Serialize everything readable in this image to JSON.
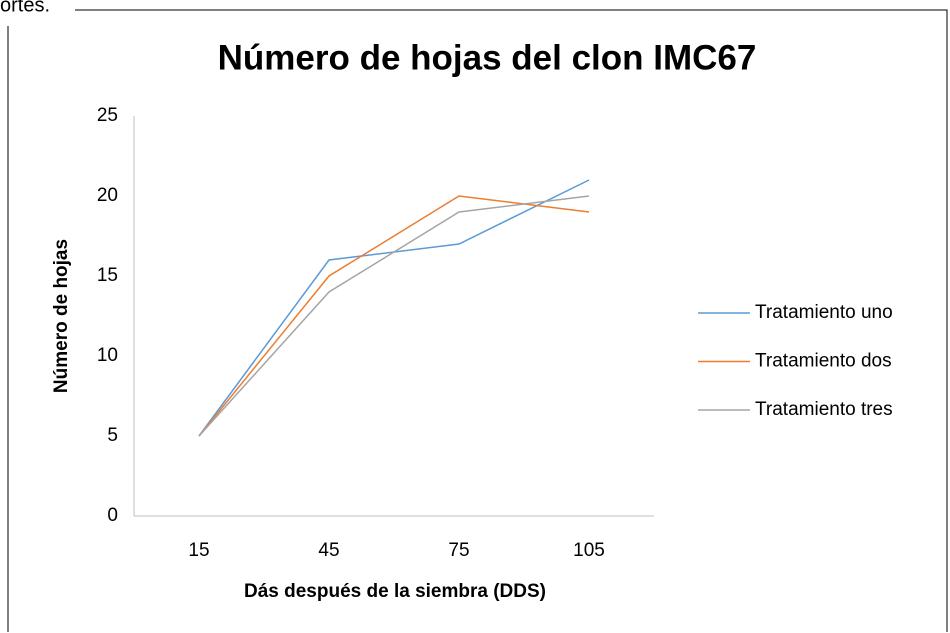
{
  "page_text": "ortes.",
  "chart_data": {
    "type": "line",
    "title": "Número de hojas del clon IMC67",
    "x_label": "Dás después de la siembra (DDS)",
    "y_label": "Número de hojas",
    "categories": [
      "15",
      "45",
      "75",
      "105"
    ],
    "series": [
      {
        "name": "Tratamiento uno",
        "color": "#5b9bd5",
        "values": [
          5,
          16,
          17,
          21
        ]
      },
      {
        "name": "Tratamiento dos",
        "color": "#ed7d31",
        "values": [
          5,
          15,
          20,
          19
        ]
      },
      {
        "name": "Tratamiento tres",
        "color": "#a5a5a5",
        "values": [
          5,
          14,
          19,
          20
        ]
      }
    ],
    "ylim": [
      0,
      25
    ],
    "yticks": [
      0,
      5,
      10,
      15,
      20,
      25
    ],
    "grid": false,
    "legend": "right"
  }
}
